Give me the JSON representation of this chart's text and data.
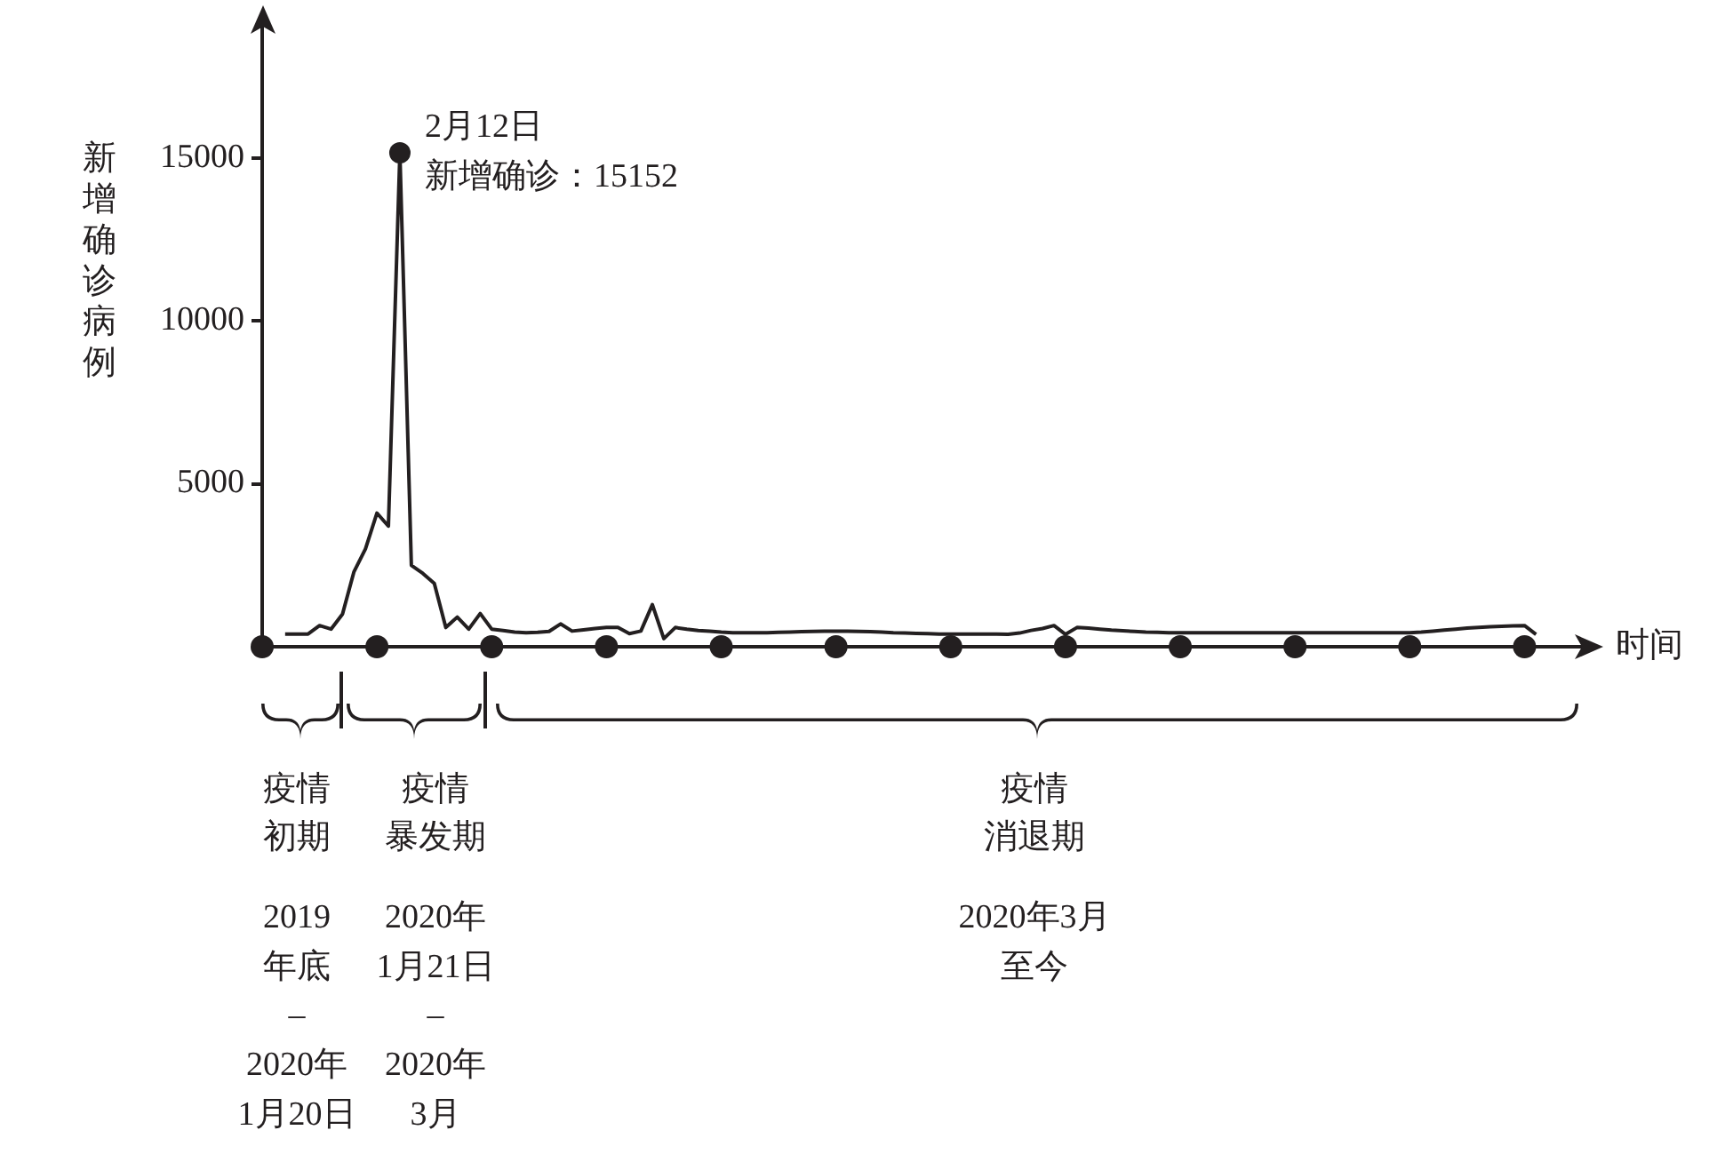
{
  "chart_data": {
    "type": "line",
    "ylabel": "新增确诊病例",
    "xlabel": "时间",
    "ylim": [
      0,
      19000
    ],
    "yticks": [
      5000,
      10000,
      15000
    ],
    "categories": [
      null,
      null,
      null,
      null,
      null,
      null,
      null,
      null,
      null,
      null,
      null,
      null,
      null,
      null,
      null,
      null,
      null,
      null,
      null,
      null,
      null,
      null,
      null,
      null,
      null,
      null,
      null,
      null,
      null,
      null,
      null,
      null,
      null,
      null,
      null,
      null,
      null,
      null,
      null,
      null,
      null,
      null,
      null,
      null,
      null,
      null,
      null,
      null,
      null,
      null,
      null,
      null,
      null,
      null,
      null,
      null,
      null,
      null,
      null,
      null,
      null,
      null,
      null,
      null,
      null,
      null,
      null,
      null,
      null,
      null,
      null,
      null,
      null,
      null,
      null,
      null,
      null,
      null,
      null,
      null,
      null,
      null,
      null,
      null,
      null,
      null,
      null,
      null,
      null,
      null,
      null,
      null,
      null,
      null,
      null,
      null,
      null,
      null,
      null,
      null,
      null,
      null,
      null,
      null,
      null,
      null,
      null,
      null,
      null,
      null,
      null,
      null,
      null,
      null,
      null,
      null
    ],
    "tick_labels": "y",
    "grid": false,
    "series": [
      {
        "color": "#231f20",
        "values": [
          null,
          null,
          390,
          390,
          390,
          650,
          540,
          1000,
          2300,
          3000,
          4100,
          3700,
          15152,
          2500,
          2250,
          1940,
          590,
          910,
          540,
          1020,
          540,
          500,
          450,
          430,
          440,
          470,
          700,
          480,
          520,
          560,
          590,
          590,
          400,
          480,
          1290,
          250,
          590,
          540,
          500,
          480,
          450,
          430,
          430,
          430,
          430,
          440,
          450,
          460,
          470,
          480,
          480,
          480,
          470,
          460,
          450,
          430,
          420,
          410,
          400,
          390,
          390,
          390,
          390,
          390,
          390,
          380,
          420,
          500,
          560,
          650,
          380,
          590,
          570,
          540,
          510,
          490,
          470,
          450,
          440,
          430,
          430,
          430,
          430,
          430,
          430,
          430,
          430,
          430,
          430,
          430,
          430,
          430,
          430,
          430,
          430,
          430,
          430,
          430,
          430,
          430,
          430,
          450,
          480,
          510,
          540,
          570,
          590,
          610,
          630,
          640,
          650,
          380,
          null,
          null,
          null,
          null
        ]
      },
      {
        "type": "scatter",
        "marker": "circle",
        "color": "#231f20",
        "values": [
          0,
          null,
          null,
          null,
          null,
          null,
          null,
          null,
          null,
          null,
          0,
          null,
          null,
          null,
          null,
          null,
          null,
          null,
          null,
          null,
          0,
          null,
          null,
          null,
          null,
          null,
          null,
          null,
          null,
          null,
          0,
          null,
          null,
          null,
          null,
          null,
          null,
          null,
          null,
          null,
          0,
          null,
          null,
          null,
          null,
          null,
          null,
          null,
          null,
          null,
          0,
          null,
          null,
          null,
          null,
          null,
          null,
          null,
          null,
          null,
          0,
          null,
          null,
          null,
          null,
          null,
          null,
          null,
          null,
          null,
          0,
          null,
          null,
          null,
          null,
          null,
          null,
          null,
          null,
          null,
          0,
          null,
          null,
          null,
          null,
          null,
          null,
          null,
          null,
          null,
          0,
          null,
          null,
          null,
          null,
          null,
          null,
          null,
          null,
          null,
          0,
          null,
          null,
          null,
          null,
          null,
          null,
          null,
          null,
          null,
          0,
          null,
          null,
          null,
          null,
          null
        ]
      }
    ],
    "annotations": [
      "2月12日",
      "新增确诊：15152",
      "疫情",
      "初期",
      "2019",
      "年底",
      "–",
      "2020年",
      "1月20日",
      "疫情",
      "暴发期",
      "2020年",
      "1月21日",
      "–",
      "2020年",
      "3月",
      "疫情",
      "消退期",
      "2020年3月",
      "至今"
    ]
  }
}
